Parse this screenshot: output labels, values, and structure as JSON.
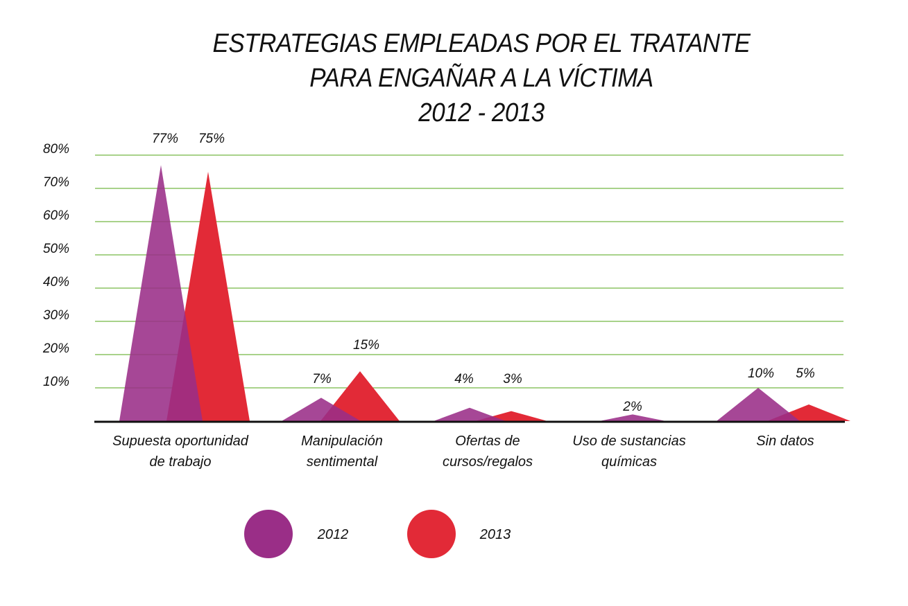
{
  "chart_data": {
    "type": "area",
    "style": "triangle-peaks",
    "title_lines": [
      "ESTRATEGIAS EMPLEADAS POR EL TRATANTE",
      "PARA ENGAÑAR A LA VÍCTIMA",
      "2012 - 2013"
    ],
    "xlabel": "",
    "ylabel": "",
    "ylim": [
      0,
      80
    ],
    "yticks": [
      "10%",
      "20%",
      "30%",
      "40%",
      "50%",
      "60%",
      "70%",
      "80%"
    ],
    "ytick_values": [
      10,
      20,
      30,
      40,
      50,
      60,
      70,
      80
    ],
    "grid": true,
    "categories": [
      [
        "Supuesta oportunidad",
        "de trabajo"
      ],
      [
        "Manipulación",
        "sentimental"
      ],
      [
        "Ofertas de",
        "cursos/regalos"
      ],
      [
        "Uso de sustancias",
        "químicas"
      ],
      [
        "Sin datos"
      ]
    ],
    "series": [
      {
        "name": "2012",
        "color": "#9a2e87",
        "values": [
          77,
          7,
          4,
          2,
          10
        ],
        "labels": [
          "77%",
          "7%",
          "4%",
          "2%",
          "10%"
        ]
      },
      {
        "name": "2013",
        "color": "#e22a37",
        "values": [
          75,
          15,
          3,
          null,
          5
        ],
        "labels": [
          "75%",
          "15%",
          "3%",
          null,
          "5%"
        ]
      }
    ],
    "legend": {
      "position": "bottom",
      "entries": [
        "2012",
        "2013"
      ]
    },
    "colors": {
      "grid": "#74b843",
      "baseline": "#111111"
    }
  }
}
